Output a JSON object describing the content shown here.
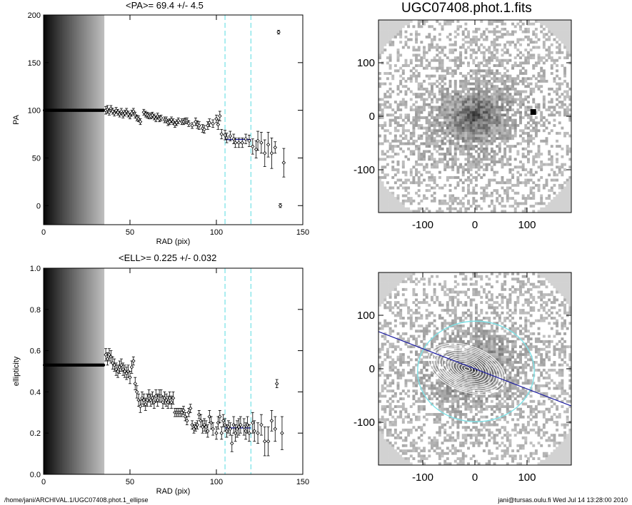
{
  "image_title": "UGC07408.phot.1.fits",
  "footer": {
    "left": "/home/jani/ARCHIVAL.1/UGC07408.phot.1_ellipse",
    "right": "jani@tursas.oulu.fi  Wed Jul 14 13:28:00 2010"
  },
  "colors": {
    "data": "#000000",
    "fit": "#1a1aa0",
    "window": "#7fe3e8"
  },
  "chart_data": [
    {
      "type": "scatter",
      "title": "<PA>=  69.4 +/-   4.5",
      "xlabel": "RAD (pix)",
      "ylabel": "PA",
      "xlim": [
        0,
        150
      ],
      "ylim": [
        -20,
        200
      ],
      "xticks": [
        0,
        50,
        100,
        150
      ],
      "yticks": [
        0,
        50,
        100,
        150,
        200
      ],
      "fit_value": 69.4,
      "fit_range": [
        105,
        120
      ],
      "window_lines": [
        105,
        120
      ],
      "inner_shading_end": 35,
      "inner_constant": 100,
      "points": [
        [
          36,
          100,
          4
        ],
        [
          37,
          101,
          4
        ],
        [
          38,
          98,
          3
        ],
        [
          39,
          102,
          3
        ],
        [
          40,
          99,
          3
        ],
        [
          41,
          97,
          3
        ],
        [
          42,
          100,
          3
        ],
        [
          43,
          98,
          3
        ],
        [
          44,
          96,
          3
        ],
        [
          45,
          99,
          3
        ],
        [
          46,
          95,
          3
        ],
        [
          47,
          97,
          3
        ],
        [
          48,
          99,
          3
        ],
        [
          49,
          96,
          3
        ],
        [
          50,
          94,
          3
        ],
        [
          51,
          97,
          3
        ],
        [
          52,
          99,
          3
        ],
        [
          53,
          95,
          3
        ],
        [
          54,
          92,
          3
        ],
        [
          55,
          91,
          3
        ],
        [
          56,
          88,
          3
        ],
        [
          58,
          98,
          3
        ],
        [
          59,
          96,
          3
        ],
        [
          60,
          95,
          3
        ],
        [
          61,
          94,
          3
        ],
        [
          62,
          94,
          3
        ],
        [
          63,
          95,
          3
        ],
        [
          64,
          93,
          3
        ],
        [
          65,
          91,
          3
        ],
        [
          66,
          94,
          3
        ],
        [
          67,
          91,
          3
        ],
        [
          68,
          92,
          3
        ],
        [
          70,
          90,
          3
        ],
        [
          71,
          90,
          3
        ],
        [
          72,
          87,
          3
        ],
        [
          73,
          88,
          3
        ],
        [
          74,
          90,
          3
        ],
        [
          75,
          88,
          3
        ],
        [
          76,
          85,
          3
        ],
        [
          77,
          87,
          3
        ],
        [
          78,
          89,
          3
        ],
        [
          80,
          88,
          3
        ],
        [
          81,
          88,
          3
        ],
        [
          82,
          89,
          3
        ],
        [
          83,
          89,
          3
        ],
        [
          84,
          86,
          3
        ],
        [
          86,
          84,
          3
        ],
        [
          88,
          88,
          4
        ],
        [
          89,
          85,
          4
        ],
        [
          90,
          84,
          4
        ],
        [
          92,
          81,
          4
        ],
        [
          93,
          80,
          4
        ],
        [
          95,
          84,
          4
        ],
        [
          96,
          87,
          4
        ],
        [
          98,
          86,
          4
        ],
        [
          100,
          91,
          4
        ],
        [
          101,
          85,
          5
        ],
        [
          102,
          94,
          5
        ],
        [
          103,
          75,
          5
        ],
        [
          105,
          74,
          5
        ],
        [
          106,
          71,
          5
        ],
        [
          108,
          73,
          5
        ],
        [
          110,
          70,
          5
        ],
        [
          111,
          66,
          5
        ],
        [
          113,
          66,
          5
        ],
        [
          115,
          66,
          5
        ],
        [
          117,
          70,
          5
        ],
        [
          119,
          68,
          6
        ],
        [
          121,
          62,
          8
        ],
        [
          123,
          59,
          9
        ],
        [
          124,
          68,
          10
        ],
        [
          126,
          66,
          11
        ],
        [
          128,
          55,
          14
        ],
        [
          130,
          64,
          13
        ],
        [
          132,
          55,
          16
        ],
        [
          134,
          61,
          6
        ],
        [
          136,
          182,
          2
        ],
        [
          137,
          0,
          2
        ],
        [
          139,
          45,
          15
        ]
      ]
    },
    {
      "type": "scatter",
      "title": "<ELL>= 0.225 +/-  0.032",
      "xlabel": "RAD (pix)",
      "ylabel": "ellipticity",
      "xlim": [
        0,
        150
      ],
      "ylim": [
        0,
        1
      ],
      "xticks": [
        0,
        50,
        100,
        150
      ],
      "yticks": [
        0.0,
        0.2,
        0.4,
        0.6,
        0.8,
        1.0
      ],
      "fit_value": 0.225,
      "fit_range": [
        105,
        120
      ],
      "window_lines": [
        105,
        120
      ],
      "inner_shading_end": 35,
      "inner_constant": 0.53,
      "points": [
        [
          36,
          0.58,
          0.03
        ],
        [
          37,
          0.56,
          0.03
        ],
        [
          38,
          0.58,
          0.03
        ],
        [
          39,
          0.57,
          0.03
        ],
        [
          40,
          0.54,
          0.03
        ],
        [
          41,
          0.53,
          0.03
        ],
        [
          42,
          0.51,
          0.03
        ],
        [
          43,
          0.5,
          0.03
        ],
        [
          44,
          0.52,
          0.03
        ],
        [
          45,
          0.53,
          0.03
        ],
        [
          46,
          0.51,
          0.03
        ],
        [
          47,
          0.5,
          0.03
        ],
        [
          48,
          0.49,
          0.03
        ],
        [
          49,
          0.5,
          0.03
        ],
        [
          50,
          0.47,
          0.03
        ],
        [
          51,
          0.52,
          0.03
        ],
        [
          52,
          0.55,
          0.02
        ],
        [
          53,
          0.44,
          0.03
        ],
        [
          54,
          0.4,
          0.03
        ],
        [
          55,
          0.36,
          0.03
        ],
        [
          56,
          0.33,
          0.03
        ],
        [
          57,
          0.37,
          0.03
        ],
        [
          58,
          0.36,
          0.03
        ],
        [
          59,
          0.34,
          0.03
        ],
        [
          60,
          0.36,
          0.03
        ],
        [
          61,
          0.38,
          0.03
        ],
        [
          62,
          0.36,
          0.03
        ],
        [
          63,
          0.37,
          0.03
        ],
        [
          64,
          0.35,
          0.03
        ],
        [
          65,
          0.38,
          0.03
        ],
        [
          66,
          0.36,
          0.03
        ],
        [
          67,
          0.38,
          0.03
        ],
        [
          68,
          0.38,
          0.03
        ],
        [
          69,
          0.35,
          0.03
        ],
        [
          70,
          0.37,
          0.03
        ],
        [
          71,
          0.36,
          0.03
        ],
        [
          72,
          0.35,
          0.03
        ],
        [
          73,
          0.37,
          0.03
        ],
        [
          74,
          0.35,
          0.03
        ],
        [
          75,
          0.37,
          0.03
        ],
        [
          76,
          0.3,
          0.02
        ],
        [
          77,
          0.3,
          0.02
        ],
        [
          78,
          0.3,
          0.02
        ],
        [
          79,
          0.3,
          0.02
        ],
        [
          80,
          0.3,
          0.02
        ],
        [
          81,
          0.31,
          0.02
        ],
        [
          82,
          0.28,
          0.02
        ],
        [
          83,
          0.26,
          0.02
        ],
        [
          84,
          0.3,
          0.02
        ],
        [
          85,
          0.32,
          0.02
        ],
        [
          86,
          0.24,
          0.02
        ],
        [
          87,
          0.22,
          0.02
        ],
        [
          88,
          0.23,
          0.02
        ],
        [
          89,
          0.24,
          0.02
        ],
        [
          90,
          0.29,
          0.02
        ],
        [
          91,
          0.26,
          0.03
        ],
        [
          92,
          0.23,
          0.03
        ],
        [
          93,
          0.24,
          0.03
        ],
        [
          94,
          0.23,
          0.03
        ],
        [
          95,
          0.21,
          0.03
        ],
        [
          96,
          0.28,
          0.03
        ],
        [
          97,
          0.25,
          0.03
        ],
        [
          98,
          0.22,
          0.03
        ],
        [
          100,
          0.2,
          0.03
        ],
        [
          101,
          0.25,
          0.03
        ],
        [
          102,
          0.28,
          0.03
        ],
        [
          103,
          0.2,
          0.03
        ],
        [
          104,
          0.26,
          0.03
        ],
        [
          105,
          0.24,
          0.03
        ],
        [
          106,
          0.21,
          0.03
        ],
        [
          107,
          0.23,
          0.03
        ],
        [
          108,
          0.22,
          0.03
        ],
        [
          109,
          0.15,
          0.04
        ],
        [
          110,
          0.24,
          0.04
        ],
        [
          111,
          0.2,
          0.04
        ],
        [
          112,
          0.22,
          0.04
        ],
        [
          113,
          0.23,
          0.04
        ],
        [
          114,
          0.24,
          0.04
        ],
        [
          116,
          0.23,
          0.04
        ],
        [
          117,
          0.21,
          0.04
        ],
        [
          118,
          0.24,
          0.04
        ],
        [
          119,
          0.2,
          0.04
        ],
        [
          121,
          0.25,
          0.05
        ],
        [
          122,
          0.21,
          0.05
        ],
        [
          124,
          0.2,
          0.05
        ],
        [
          126,
          0.24,
          0.05
        ],
        [
          128,
          0.16,
          0.07
        ],
        [
          130,
          0.16,
          0.07
        ],
        [
          132,
          0.26,
          0.05
        ],
        [
          134,
          0.22,
          0.06
        ],
        [
          135,
          0.44,
          0.02
        ],
        [
          138,
          0.2,
          0.08
        ]
      ]
    },
    {
      "type": "heatmap",
      "title": "UGC07408.phot.1.fits",
      "xlim": [
        -185,
        185
      ],
      "ylim": [
        -180,
        180
      ],
      "xticks": [
        -100,
        0,
        100
      ],
      "yticks": [
        -100,
        0,
        100
      ]
    },
    {
      "type": "heatmap",
      "title": "",
      "xlim": [
        -185,
        185
      ],
      "ylim": [
        -180,
        180
      ],
      "xticks": [
        -100,
        0,
        100
      ],
      "yticks": [
        -100,
        0,
        100
      ],
      "fit_ellipse": {
        "a": 112,
        "b": 94,
        "pa_deg": 69.4
      },
      "major_axis_pa_deg": 69.4
    }
  ]
}
